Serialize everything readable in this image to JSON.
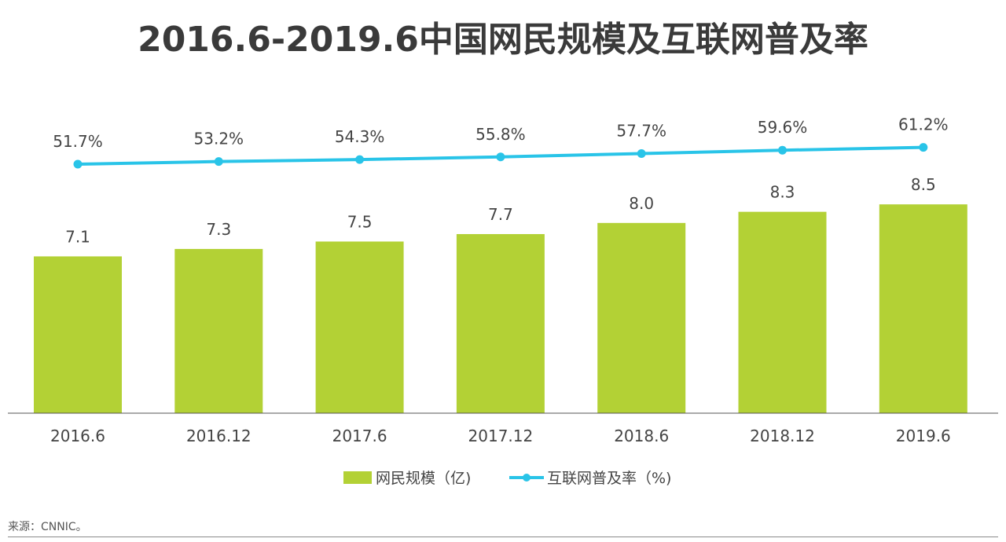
{
  "title": "2016.6-2019.6中国网民规模及互联网普及率",
  "source": "来源：CNNIC。",
  "colors": {
    "bar": "#b3d135",
    "line": "#29c4e8",
    "axis": "#555555",
    "text": "#444444"
  },
  "chart_data": {
    "type": "bar",
    "title": "2016.6-2019.6中国网民规模及互联网普及率",
    "categories": [
      "2016.6",
      "2016.12",
      "2017.6",
      "2017.12",
      "2018.6",
      "2018.12",
      "2019.6"
    ],
    "series": [
      {
        "name": "网民规模（亿)",
        "type": "bar",
        "values": [
          7.1,
          7.3,
          7.5,
          7.7,
          8.0,
          8.3,
          8.5
        ],
        "labels": [
          "7.1",
          "7.3",
          "7.5",
          "7.7",
          "8.0",
          "8.3",
          "8.5"
        ]
      },
      {
        "name": "互联网普及率（%)",
        "type": "line",
        "values": [
          51.7,
          53.2,
          54.3,
          55.8,
          57.7,
          59.6,
          61.2
        ],
        "labels": [
          "51.7%",
          "53.2%",
          "54.3%",
          "55.8%",
          "57.7%",
          "59.6%",
          "61.2%"
        ]
      }
    ],
    "legend": [
      "网民规模（亿)",
      "互联网普及率（%)"
    ],
    "legend_position": "bottom",
    "grid": false
  }
}
